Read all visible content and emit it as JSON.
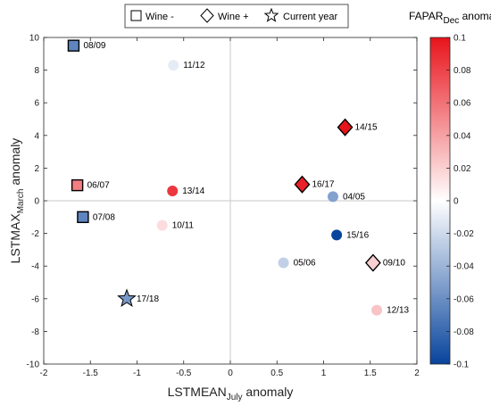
{
  "chart_data": {
    "type": "scatter",
    "xlabel": {
      "main": "LSTMEAN",
      "sub": "July",
      "suffix": " anomaly"
    },
    "ylabel": {
      "main": "LSTMAX",
      "sub": "March",
      "suffix": " anomaly"
    },
    "xlim": [
      -2,
      2
    ],
    "ylim": [
      -10,
      10
    ],
    "xticks": [
      "-2",
      "-1.5",
      "-1",
      "-0.5",
      "0",
      "0.5",
      "1",
      "1.5",
      "2"
    ],
    "yticks": [
      "10",
      "8",
      "6",
      "4",
      "2",
      "0",
      "-2",
      "-4",
      "-6",
      "-8",
      "-10"
    ],
    "grid": false,
    "reference_lines": {
      "x": 0,
      "y": 0
    },
    "legend": {
      "placement": "top-center",
      "entries": [
        {
          "symbol": "square",
          "label": "Wine -"
        },
        {
          "symbol": "diamond",
          "label": "Wine +"
        },
        {
          "symbol": "star",
          "label": "Current year"
        }
      ]
    },
    "colorbar": {
      "title": {
        "main": "FAPAR",
        "sub": "Dec",
        "suffix": " anomaly"
      },
      "range": [
        -0.1,
        0.1
      ],
      "ticks": [
        "0.1",
        "0.08",
        "0.06",
        "0.04",
        "0.02",
        "0",
        "-0.02",
        "-0.04",
        "-0.06",
        "-0.08",
        "-0.1"
      ],
      "colormap": {
        "low": "#08449c",
        "mid": "#ffffff",
        "high": "#e8141c"
      }
    },
    "points": [
      {
        "label": "08/09",
        "x": -1.68,
        "y": 9.5,
        "c": -0.065,
        "marker": "square"
      },
      {
        "label": "11/12",
        "x": -0.61,
        "y": 8.3,
        "c": -0.01,
        "marker": "circle"
      },
      {
        "label": "14/15",
        "x": 1.23,
        "y": 4.5,
        "c": 0.1,
        "marker": "diamond"
      },
      {
        "label": "06/07",
        "x": -1.64,
        "y": 0.95,
        "c": 0.055,
        "marker": "square"
      },
      {
        "label": "13/14",
        "x": -0.62,
        "y": 0.6,
        "c": 0.085,
        "marker": "circle"
      },
      {
        "label": "16/17",
        "x": 0.77,
        "y": 1.0,
        "c": 0.095,
        "marker": "diamond"
      },
      {
        "label": "04/05",
        "x": 1.1,
        "y": 0.25,
        "c": -0.05,
        "marker": "circle"
      },
      {
        "label": "07/08",
        "x": -1.58,
        "y": -1.0,
        "c": -0.065,
        "marker": "square"
      },
      {
        "label": "10/11",
        "x": -0.73,
        "y": -1.5,
        "c": 0.015,
        "marker": "circle"
      },
      {
        "label": "15/16",
        "x": 1.14,
        "y": -2.1,
        "c": -0.1,
        "marker": "circle"
      },
      {
        "label": "05/06",
        "x": 0.57,
        "y": -3.8,
        "c": -0.025,
        "marker": "circle"
      },
      {
        "label": "09/10",
        "x": 1.53,
        "y": -3.8,
        "c": 0.02,
        "marker": "diamond"
      },
      {
        "label": "17/18",
        "x": -1.11,
        "y": -6.0,
        "c": -0.055,
        "marker": "star"
      },
      {
        "label": "12/13",
        "x": 1.57,
        "y": -6.7,
        "c": 0.025,
        "marker": "circle"
      }
    ]
  }
}
